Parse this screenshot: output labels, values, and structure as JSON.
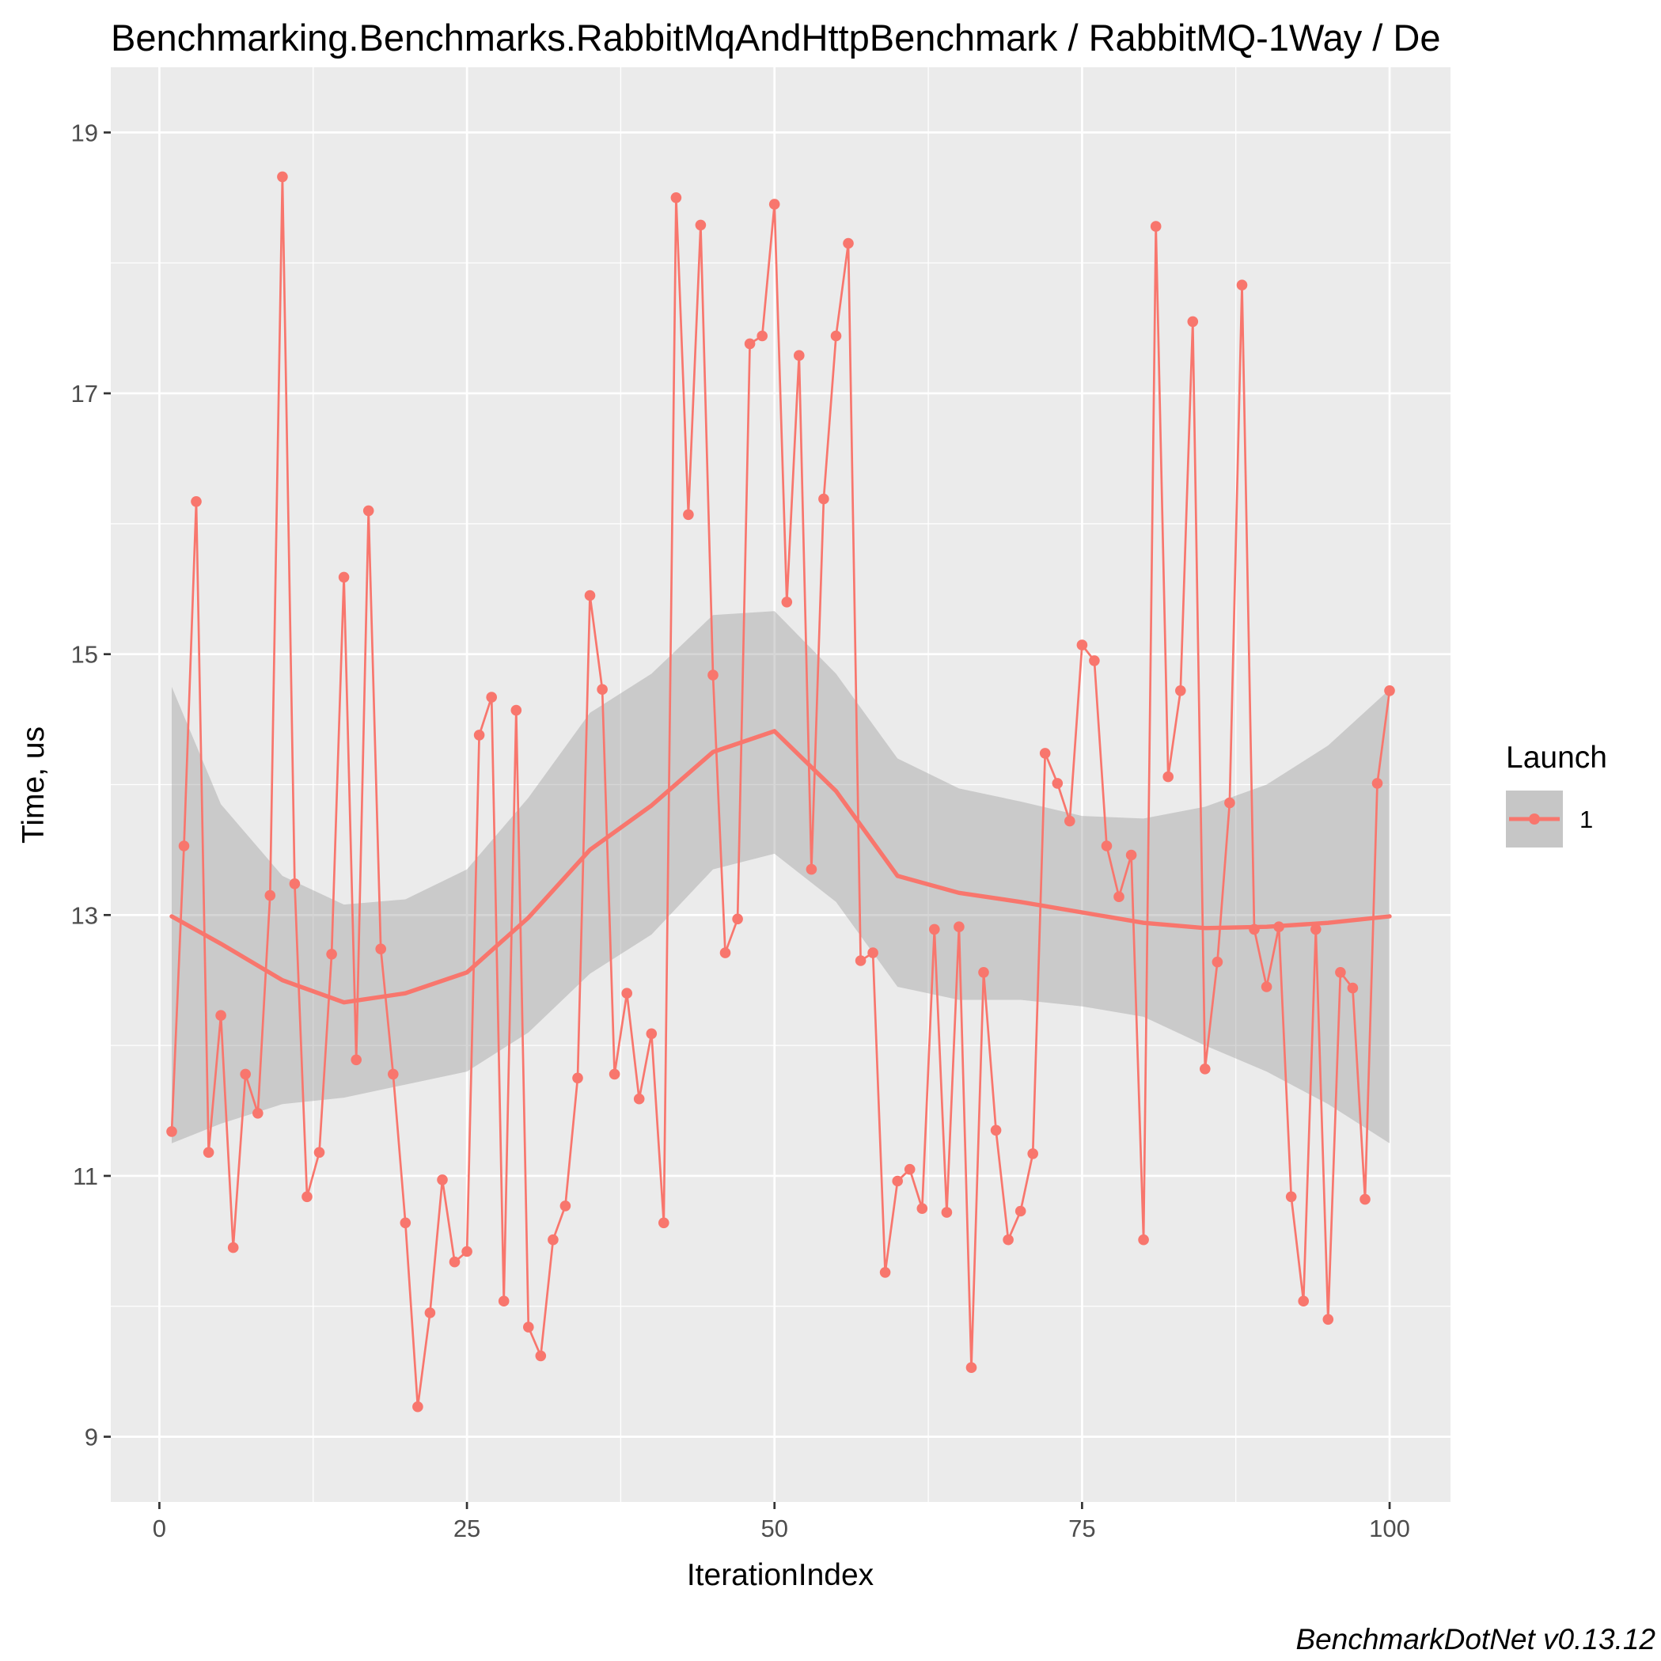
{
  "chart_data": {
    "type": "line",
    "title": "Benchmarking.Benchmarks.RabbitMqAndHttpBenchmark / RabbitMQ-1Way / De",
    "xlabel": "IterationIndex",
    "ylabel": "Time, us",
    "xlim": [
      -3.95,
      104.95
    ],
    "ylim": [
      8.5,
      19.5
    ],
    "x_ticks": [
      0,
      25,
      50,
      75,
      100
    ],
    "x_tick_labels": [
      "0",
      "25",
      "50",
      "75",
      "100"
    ],
    "y_ticks": [
      9,
      11,
      13,
      15,
      17,
      19
    ],
    "y_tick_labels": [
      "9",
      "11",
      "13",
      "15",
      "17",
      "19"
    ],
    "grid": true,
    "legend": {
      "title": "Launch",
      "position": "right",
      "entries": [
        "1"
      ]
    },
    "caption": "BenchmarkDotNet v0.13.12",
    "series_color": "#f8766d",
    "series": [
      {
        "name": "1",
        "x": [
          1,
          2,
          3,
          4,
          5,
          6,
          7,
          8,
          9,
          10,
          11,
          12,
          13,
          14,
          15,
          16,
          17,
          18,
          19,
          20,
          21,
          22,
          23,
          24,
          25,
          26,
          27,
          28,
          29,
          30,
          31,
          32,
          33,
          34,
          35,
          36,
          37,
          38,
          39,
          40,
          41,
          42,
          43,
          44,
          45,
          46,
          47,
          48,
          49,
          50,
          51,
          52,
          53,
          54,
          55,
          56,
          57,
          58,
          59,
          60,
          61,
          62,
          63,
          64,
          65,
          66,
          67,
          68,
          69,
          70,
          71,
          72,
          73,
          74,
          75,
          76,
          77,
          78,
          79,
          80,
          81,
          82,
          83,
          84,
          85,
          86,
          87,
          88,
          89,
          90,
          91,
          92,
          93,
          94,
          95,
          96,
          97,
          98,
          99,
          100
        ],
        "values": [
          11.34,
          13.53,
          16.17,
          11.18,
          12.23,
          10.45,
          11.78,
          11.48,
          13.15,
          18.66,
          13.24,
          10.84,
          11.18,
          12.7,
          15.59,
          11.89,
          16.1,
          12.74,
          11.78,
          10.64,
          9.23,
          9.95,
          10.97,
          10.34,
          10.42,
          14.38,
          14.67,
          10.04,
          14.57,
          9.84,
          9.62,
          10.51,
          10.77,
          11.75,
          15.45,
          14.73,
          11.78,
          12.4,
          11.59,
          12.09,
          10.64,
          18.5,
          16.07,
          18.29,
          14.84,
          12.71,
          12.97,
          17.38,
          17.44,
          18.45,
          15.4,
          17.29,
          13.35,
          16.19,
          17.44,
          18.15,
          12.65,
          12.71,
          10.26,
          10.96,
          11.05,
          10.75,
          12.89,
          10.72,
          12.91,
          9.53,
          12.56,
          11.35,
          10.51,
          10.73,
          11.17,
          14.24,
          14.01,
          13.72,
          15.07,
          14.95,
          13.53,
          13.14,
          13.46,
          10.51,
          18.28,
          14.06,
          14.72,
          17.55,
          11.82,
          12.64,
          13.86,
          17.83,
          12.89,
          12.45,
          12.91,
          10.84,
          10.04,
          12.89,
          9.9,
          12.56,
          12.44,
          10.82,
          14.01,
          14.72
        ]
      }
    ],
    "smooth": {
      "x": [
        1,
        5,
        10,
        15,
        20,
        25,
        30,
        35,
        40,
        45,
        50,
        55,
        60,
        65,
        70,
        75,
        80,
        85,
        90,
        95,
        100
      ],
      "values": [
        12.99,
        12.78,
        12.5,
        12.33,
        12.4,
        12.56,
        12.98,
        13.5,
        13.84,
        14.25,
        14.41,
        13.95,
        13.3,
        13.17,
        13.1,
        13.02,
        12.94,
        12.9,
        12.91,
        12.94,
        12.99
      ],
      "ci_upper": [
        14.75,
        13.85,
        13.3,
        13.08,
        13.12,
        13.35,
        13.9,
        14.55,
        14.85,
        15.3,
        15.33,
        14.85,
        14.2,
        13.97,
        13.87,
        13.76,
        13.74,
        13.83,
        14.0,
        14.3,
        14.73
      ],
      "ci_lower": [
        11.25,
        11.4,
        11.55,
        11.6,
        11.7,
        11.8,
        12.1,
        12.55,
        12.85,
        13.35,
        13.47,
        13.1,
        12.45,
        12.35,
        12.35,
        12.3,
        12.22,
        12.0,
        11.8,
        11.55,
        11.25
      ]
    }
  }
}
